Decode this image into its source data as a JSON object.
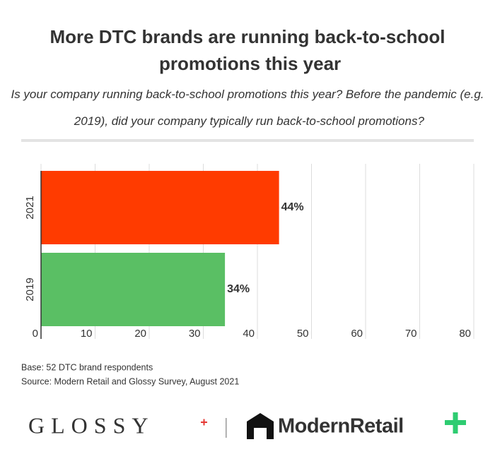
{
  "chart_data": {
    "type": "bar",
    "orientation": "horizontal",
    "title": "More DTC brands are running back-to-school promotions this year",
    "subtitle": "Is your company running back-to-school promotions this year? Before the pandemic (e.g. 2019), did your company typically run back-to-school promotions?",
    "categories": [
      "2021",
      "2019"
    ],
    "values": [
      44,
      34
    ],
    "value_labels": [
      "44%",
      "34%"
    ],
    "colors": [
      "#ff3b00",
      "#5abf64"
    ],
    "xlim": [
      0,
      80
    ],
    "xticks": [
      0,
      10,
      20,
      30,
      40,
      50,
      60,
      70,
      80
    ],
    "grid": true
  },
  "footer": {
    "base": "Base: 52 DTC brand respondents",
    "source": "Source: Modern Retail and Glossy Survey, August 2021"
  },
  "logos": {
    "left": "GLOSSY",
    "right": "ModernRetail"
  }
}
